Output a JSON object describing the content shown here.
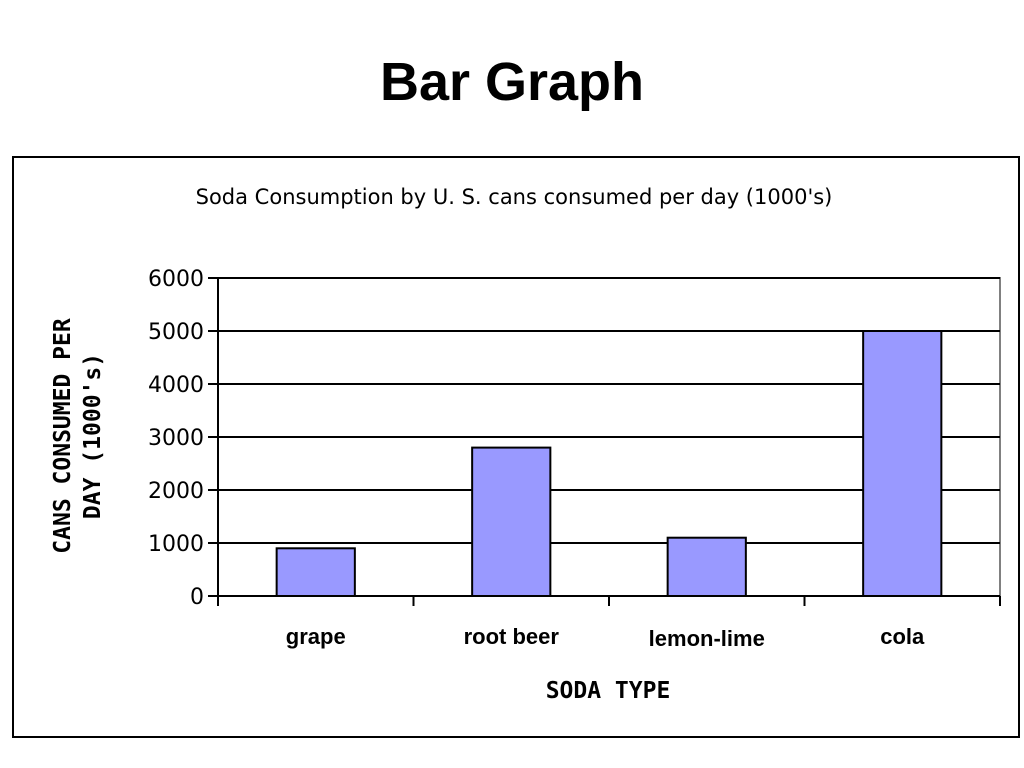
{
  "page": {
    "title": "Bar Graph"
  },
  "chart_data": {
    "type": "bar",
    "title": "Soda Consumption by U. S.  cans consumed per day (1000's)",
    "xlabel": "SODA TYPE",
    "ylabel_lines": [
      "CANS CONSUMED PER",
      "DAY (1000's)"
    ],
    "categories": [
      "grape",
      "root beer",
      "lemon-lime",
      "cola"
    ],
    "values": [
      900,
      2800,
      1100,
      5000
    ],
    "ylim": [
      0,
      6000
    ],
    "yticks": [
      0,
      1000,
      2000,
      3000,
      4000,
      5000,
      6000
    ],
    "grid": true,
    "legend": "none",
    "colors": {
      "bar_fill": "#9999ff",
      "bar_stroke": "#000000",
      "grid": "#000000",
      "plot_border": "#808080"
    }
  }
}
